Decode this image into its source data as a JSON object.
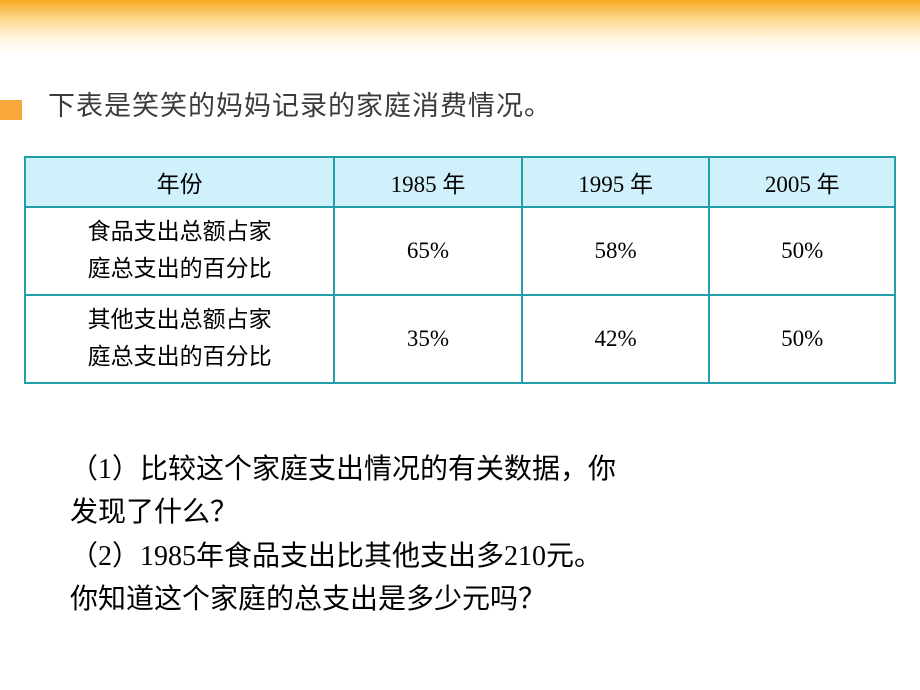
{
  "intro": "下表是笑笑的妈妈记录的家庭消费情况。",
  "table": {
    "header_color": "#d0f1fb",
    "border_color": "#1f9faa",
    "columns": [
      "年份",
      "1985 年",
      "1995 年",
      "2005 年"
    ],
    "rows": [
      {
        "label_line1": "食品支出总额占家",
        "label_line2": "庭总支出的百分比",
        "values": [
          "65%",
          "58%",
          "50%"
        ]
      },
      {
        "label_line1": "其他支出总额占家",
        "label_line2": "庭总支出的百分比",
        "values": [
          "35%",
          "42%",
          "50%"
        ]
      }
    ]
  },
  "questions": {
    "q1_line1": "（1）比较这个家庭支出情况的有关数据，你",
    "q1_line2": "发现了什么？",
    "q2_line1": "（2）1985年食品支出比其他支出多210元。",
    "q2_line2": "你知道这个家庭的总支出是多少元吗？"
  },
  "colors": {
    "gradient_top": "#f8a922",
    "accent_bar": "#f8a83a",
    "intro_text": "#3b3b3b"
  }
}
